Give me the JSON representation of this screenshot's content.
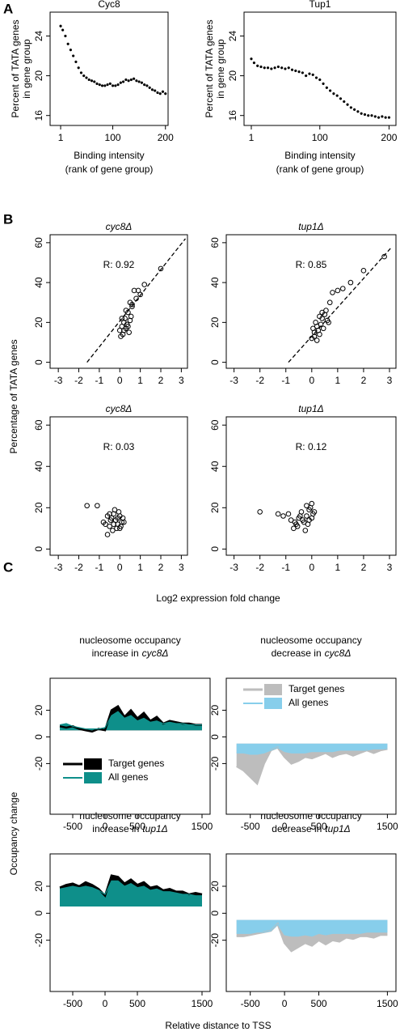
{
  "panels": [
    "A",
    "B",
    "C"
  ],
  "panel_b": {
    "xlabel": "Log2 expression fold change",
    "ylabel": "Percentage of  TATA genes"
  },
  "panel_c": {
    "xlabel": "Relative distance to TSS",
    "ylabel": "Occupancy change"
  },
  "chart_data": [
    {
      "type": "scatter",
      "marker": "filled",
      "title": "Cyc8",
      "ylabel": [
        "Percent of TATA genes",
        "in gene group"
      ],
      "xlabel": [
        "Binding intensity",
        "(rank of gene group)"
      ],
      "xlim": [
        -19,
        205
      ],
      "ylim": [
        15,
        26.4
      ],
      "xticks": [
        1,
        100,
        200
      ],
      "yticks": [
        16,
        20,
        24
      ],
      "color": "#000000",
      "x": [
        1,
        5,
        10,
        15,
        20,
        25,
        30,
        35,
        40,
        45,
        50,
        55,
        60,
        65,
        70,
        75,
        80,
        85,
        90,
        95,
        100,
        105,
        110,
        115,
        120,
        125,
        130,
        135,
        140,
        145,
        150,
        155,
        160,
        165,
        170,
        175,
        180,
        185,
        190,
        195,
        200
      ],
      "y": [
        25,
        24.6,
        24,
        23.2,
        22.6,
        22,
        21.4,
        20.8,
        20.3,
        20,
        19.8,
        19.6,
        19.5,
        19.4,
        19.2,
        19.1,
        19,
        19,
        19.1,
        19.2,
        19,
        19,
        19.1,
        19.3,
        19.4,
        19.6,
        19.5,
        19.6,
        19.7,
        19.5,
        19.4,
        19.3,
        19.1,
        19,
        18.8,
        18.6,
        18.5,
        18.3,
        18.2,
        18.4,
        18.2
      ]
    },
    {
      "type": "scatter",
      "marker": "filled",
      "title": "Tup1",
      "ylabel": [
        "Percent of TATA genes",
        "in gene group"
      ],
      "xlabel": [
        "Binding intensity",
        "(rank of gene group)"
      ],
      "xlim": [
        -9.5,
        210
      ],
      "ylim": [
        15,
        26.4
      ],
      "xticks": [
        1,
        100,
        200
      ],
      "yticks": [
        16,
        20,
        24
      ],
      "color": "#000000",
      "x": [
        1,
        5,
        10,
        15,
        20,
        25,
        30,
        35,
        40,
        45,
        50,
        55,
        60,
        65,
        70,
        75,
        80,
        85,
        90,
        95,
        100,
        105,
        110,
        115,
        120,
        125,
        130,
        135,
        140,
        145,
        150,
        155,
        160,
        165,
        170,
        175,
        180,
        185,
        190,
        195,
        200
      ],
      "y": [
        21.7,
        21.3,
        21,
        20.9,
        20.8,
        20.8,
        20.7,
        20.8,
        20.9,
        20.8,
        20.7,
        20.8,
        20.6,
        20.5,
        20.4,
        20.3,
        20,
        20.2,
        20.1,
        19.8,
        19.6,
        19.2,
        18.8,
        18.5,
        18.2,
        18,
        17.7,
        17.4,
        17.1,
        16.8,
        16.6,
        16.4,
        16.2,
        16.1,
        16,
        16,
        15.9,
        15.8,
        15.9,
        15.8,
        15.8
      ]
    },
    {
      "type": "scatter",
      "marker": "open",
      "title": "cyc8Δ",
      "title_style": "italic",
      "annotation": "R: 0.92",
      "xlim": [
        -3.4,
        3.3
      ],
      "ylim": [
        -3,
        64
      ],
      "xticks": [
        -3,
        -2,
        -1,
        0,
        1,
        2,
        3
      ],
      "yticks": [
        0,
        20,
        40,
        60
      ],
      "color": "#000000",
      "fit_line": {
        "x": [
          -1.6,
          3.2
        ],
        "y": [
          0,
          62
        ]
      },
      "x": [
        0,
        0.1,
        0.2,
        0.15,
        0.3,
        0.25,
        0.4,
        0.5,
        0.35,
        0.05,
        0.2,
        0.45,
        0.6,
        0.5,
        0.7,
        0.9,
        0.8,
        1.2,
        1.0,
        2.0,
        0.6,
        0.3,
        0.1,
        0.4,
        0.55
      ],
      "y": [
        16,
        18,
        20,
        14,
        17,
        22,
        25,
        21,
        19,
        13,
        16,
        15,
        28,
        30,
        36,
        36,
        32,
        39,
        34,
        47,
        29,
        26,
        22,
        18,
        23
      ]
    },
    {
      "type": "scatter",
      "marker": "open",
      "title": "tup1Δ",
      "title_style": "italic",
      "annotation": "R: 0.85",
      "xlim": [
        -3.3,
        3.25
      ],
      "ylim": [
        -3,
        64
      ],
      "xticks": [
        -3,
        -2,
        -1,
        0,
        1,
        2,
        3
      ],
      "yticks": [
        0,
        20,
        40,
        60
      ],
      "color": "#000000",
      "fit_line": {
        "x": [
          -0.9,
          3.1
        ],
        "y": [
          0,
          58
        ]
      },
      "x": [
        0,
        0.1,
        0.2,
        0.3,
        0.05,
        0.15,
        0.4,
        0.35,
        0.25,
        0.5,
        0.6,
        0.45,
        0.1,
        0.3,
        0.7,
        0.8,
        1.0,
        1.2,
        1.5,
        2.0,
        2.8,
        0.55,
        0.2,
        0.65,
        0.4
      ],
      "y": [
        12,
        15,
        18,
        14,
        17,
        20,
        22,
        19,
        16,
        24,
        21,
        17,
        13,
        23,
        30,
        35,
        36,
        37,
        40,
        46,
        53,
        26,
        11,
        20,
        25
      ]
    },
    {
      "type": "scatter",
      "marker": "open",
      "title": "cyc8Δ",
      "title_style": "italic",
      "annotation": "R: 0.03",
      "xlim": [
        -3.4,
        3.3
      ],
      "ylim": [
        -3,
        64
      ],
      "xticks": [
        -3,
        -2,
        -1,
        0,
        1,
        2,
        3
      ],
      "yticks": [
        0,
        20,
        40,
        60
      ],
      "color": "#000000",
      "x": [
        -1.6,
        -1.1,
        -0.8,
        -0.6,
        -0.5,
        -0.4,
        -0.3,
        -0.2,
        -0.1,
        0,
        0.1,
        -0.35,
        -0.6,
        -0.25,
        -0.15,
        0.05,
        -0.45,
        -0.05,
        0.15,
        -0.7,
        0.2,
        -0.3,
        -0.1,
        -0.5,
        0
      ],
      "y": [
        21,
        21,
        13,
        16,
        11,
        15,
        17,
        14,
        12,
        16,
        13,
        9,
        7,
        19,
        10,
        11,
        14,
        18,
        15,
        12,
        13,
        12,
        15,
        17,
        10
      ]
    },
    {
      "type": "scatter",
      "marker": "open",
      "title": "tup1Δ",
      "title_style": "italic",
      "annotation": "R: 0.12",
      "xlim": [
        -3.3,
        3.25
      ],
      "ylim": [
        -3,
        64
      ],
      "xticks": [
        -3,
        -2,
        -1,
        0,
        1,
        2,
        3
      ],
      "yticks": [
        0,
        20,
        40,
        60
      ],
      "color": "#000000",
      "x": [
        -2,
        -1.3,
        -1.1,
        -0.9,
        -0.8,
        -0.7,
        -0.6,
        -0.5,
        -0.4,
        -0.3,
        -0.2,
        -0.1,
        0,
        -0.05,
        0.05,
        -0.25,
        -0.55,
        -0.35,
        -0.15,
        0.1,
        -0.45,
        -0.65,
        0,
        -0.2,
        -0.1
      ],
      "y": [
        18,
        17,
        16,
        17,
        14,
        10,
        12,
        15,
        18,
        13,
        16,
        19,
        22,
        20,
        17,
        9,
        11,
        14,
        12,
        18,
        16,
        13,
        15,
        21,
        14
      ]
    },
    {
      "type": "area",
      "title_lines": [
        "nucleosome occupancy",
        "increase in",
        "cyc8Δ"
      ],
      "legend": "lower-center",
      "fill_base": 5,
      "xlim": [
        -850,
        1625
      ],
      "ylim": [
        -58,
        44
      ],
      "xticks": [
        -500,
        0,
        500,
        1500
      ],
      "yticks": [
        -20,
        0,
        20
      ],
      "x": [
        -700,
        -600,
        -500,
        -400,
        -300,
        -200,
        -100,
        0,
        100,
        200,
        300,
        400,
        500,
        600,
        700,
        800,
        900,
        1000,
        1100,
        1200,
        1300,
        1400,
        1500
      ],
      "series": [
        {
          "name": "Target genes",
          "color": "#000000",
          "values": [
            8,
            7,
            8,
            6,
            5,
            4,
            6,
            5,
            20,
            23,
            15,
            20,
            14,
            18,
            12,
            15,
            10,
            12,
            11,
            10,
            10,
            9,
            9
          ]
        },
        {
          "name": "All genes",
          "color": "#0e8f8a",
          "values": [
            9,
            10,
            8,
            7,
            6,
            6,
            6,
            7,
            16,
            19,
            14,
            16,
            12,
            14,
            11,
            12,
            10,
            11,
            10,
            10,
            9,
            9,
            9
          ]
        }
      ]
    },
    {
      "type": "area",
      "title_lines": [
        "nucleosome occupancy",
        "decrease in",
        "cyc8Δ"
      ],
      "legend": "upper-right",
      "fill_base": -5,
      "xlim": [
        -850,
        1625
      ],
      "ylim": [
        -58,
        44
      ],
      "xticks": [
        -500,
        0,
        500,
        1500
      ],
      "yticks": [
        -20,
        0,
        20
      ],
      "x": [
        -700,
        -600,
        -500,
        -400,
        -300,
        -200,
        -100,
        0,
        100,
        200,
        300,
        400,
        500,
        600,
        700,
        800,
        900,
        1000,
        1100,
        1200,
        1300,
        1400,
        1500
      ],
      "series": [
        {
          "name": "Target genes",
          "color": "#bdbdbd",
          "values": [
            -22,
            -25,
            -30,
            -35,
            -20,
            -10,
            -8,
            -15,
            -20,
            -18,
            -15,
            -16,
            -14,
            -12,
            -15,
            -13,
            -12,
            -14,
            -12,
            -10,
            -12,
            -10,
            -9
          ]
        },
        {
          "name": "All genes",
          "color": "#87ceeb",
          "values": [
            -12,
            -12,
            -13,
            -13,
            -12,
            -10,
            -8,
            -11,
            -12,
            -12,
            -12,
            -11,
            -11,
            -11,
            -11,
            -10,
            -10,
            -10,
            -10,
            -10,
            -9,
            -9,
            -9
          ]
        }
      ]
    },
    {
      "type": "area",
      "title_lines": [
        "nucleosome occupancy",
        "increase in",
        "tup1Δ"
      ],
      "fill_base": 5,
      "xlim": [
        -850,
        1625
      ],
      "ylim": [
        -58,
        44
      ],
      "xticks": [
        -500,
        0,
        500,
        1500
      ],
      "yticks": [
        -20,
        0,
        20
      ],
      "x": [
        -700,
        -600,
        -500,
        -400,
        -300,
        -200,
        -100,
        0,
        100,
        200,
        300,
        400,
        500,
        600,
        700,
        800,
        900,
        1000,
        1100,
        1200,
        1300,
        1400,
        1500
      ],
      "series": [
        {
          "name": "Target genes",
          "color": "#000000",
          "values": [
            19,
            21,
            22,
            20,
            23,
            21,
            18,
            13,
            28,
            27,
            22,
            25,
            21,
            23,
            19,
            20,
            17,
            18,
            16,
            16,
            14,
            15,
            14
          ]
        },
        {
          "name": "All genes",
          "color": "#0e8f8a",
          "values": [
            18,
            19,
            20,
            19,
            20,
            19,
            17,
            14,
            24,
            24,
            20,
            22,
            19,
            20,
            17,
            18,
            16,
            16,
            15,
            14,
            14,
            13,
            13
          ]
        }
      ]
    },
    {
      "type": "area",
      "title_lines": [
        "nucleosome occupancy",
        "decrease in",
        "tup1Δ"
      ],
      "fill_base": -5,
      "xlim": [
        -850,
        1625
      ],
      "ylim": [
        -58,
        44
      ],
      "xticks": [
        -500,
        0,
        500,
        1500
      ],
      "yticks": [
        -20,
        0,
        20
      ],
      "x": [
        -700,
        -600,
        -500,
        -400,
        -300,
        -200,
        -100,
        0,
        100,
        200,
        300,
        400,
        500,
        600,
        700,
        800,
        900,
        1000,
        1100,
        1200,
        1300,
        1400,
        1500
      ],
      "series": [
        {
          "name": "Target genes",
          "color": "#bdbdbd",
          "values": [
            -17,
            -17,
            -16,
            -15,
            -14,
            -13,
            -8,
            -22,
            -28,
            -25,
            -22,
            -24,
            -20,
            -23,
            -20,
            -21,
            -18,
            -19,
            -17,
            -17,
            -18,
            -16,
            -16
          ]
        },
        {
          "name": "All genes",
          "color": "#87ceeb",
          "values": [
            -15,
            -15,
            -15,
            -14,
            -14,
            -13,
            -8,
            -16,
            -17,
            -17,
            -16,
            -17,
            -15,
            -16,
            -15,
            -15,
            -15,
            -15,
            -15,
            -14,
            -14,
            -14,
            -14
          ]
        }
      ]
    }
  ]
}
